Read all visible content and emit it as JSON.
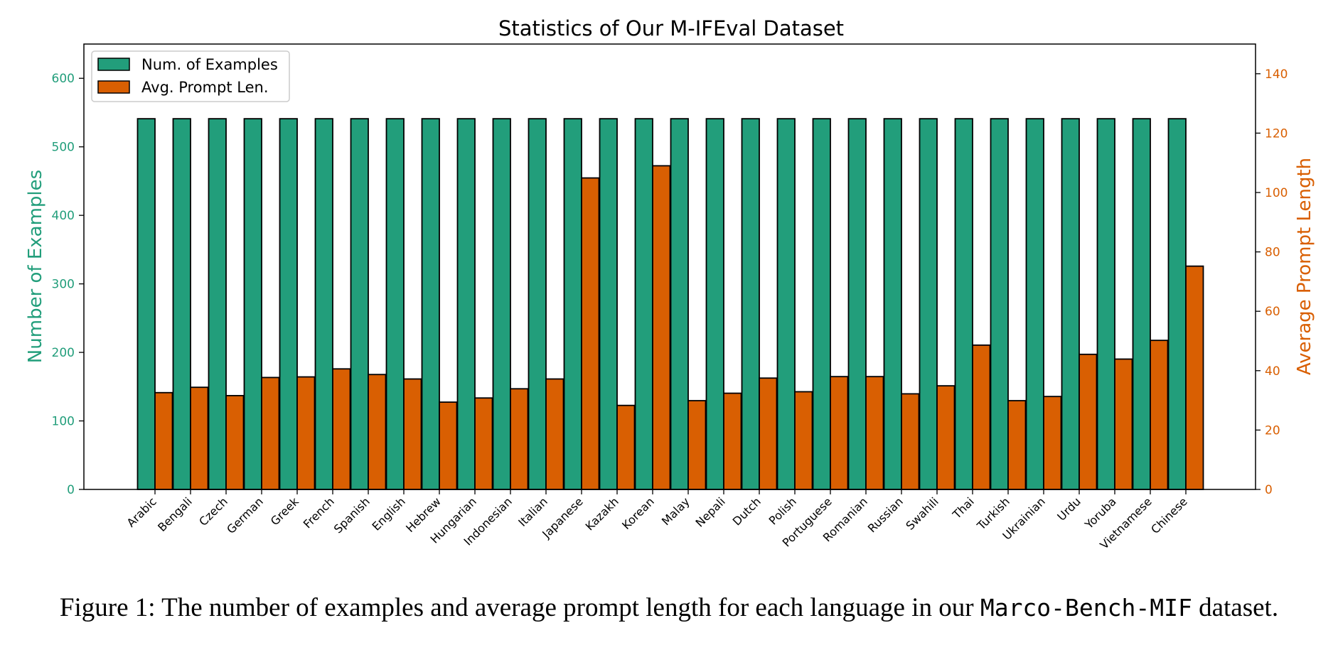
{
  "chart_data": {
    "type": "bar",
    "title": "Statistics of Our M-IFEval Dataset",
    "ylabel": "Number of Examples",
    "y2label": "Average Prompt Length",
    "ylim": [
      0,
      650
    ],
    "y2lim": [
      0,
      150
    ],
    "yticks": [
      0,
      100,
      200,
      300,
      400,
      500,
      600
    ],
    "y2ticks": [
      0,
      20,
      40,
      60,
      80,
      100,
      120,
      140
    ],
    "grid": false,
    "legend_position": "top-left",
    "categories": [
      "Arabic",
      "Bengali",
      "Czech",
      "German",
      "Greek",
      "French",
      "Spanish",
      "English",
      "Hebrew",
      "Hungarian",
      "Indonesian",
      "Italian",
      "Japanese",
      "Kazakh",
      "Korean",
      "Malay",
      "Nepali",
      "Dutch",
      "Polish",
      "Portuguese",
      "Romanian",
      "Russian",
      "Swahili",
      "Thai",
      "Turkish",
      "Ukrainian",
      "Urdu",
      "Yoruba",
      "Vietnamese",
      "Chinese"
    ],
    "series": [
      {
        "name": "Num. of Examples",
        "axis": "left",
        "color": "#229e7b",
        "values": [
          541,
          541,
          541,
          541,
          541,
          541,
          541,
          541,
          541,
          541,
          541,
          541,
          541,
          541,
          541,
          541,
          541,
          541,
          541,
          541,
          541,
          541,
          541,
          541,
          541,
          541,
          541,
          541,
          541,
          541
        ]
      },
      {
        "name": "Avg. Prompt Len.",
        "axis": "right",
        "color": "#d95f02",
        "values": [
          32.6,
          34.4,
          31.6,
          37.7,
          37.9,
          40.6,
          38.7,
          37.2,
          29.4,
          30.8,
          33.9,
          37.2,
          104.9,
          28.3,
          109.0,
          29.9,
          32.4,
          37.5,
          32.9,
          38.0,
          38.0,
          32.2,
          34.9,
          48.6,
          29.9,
          31.3,
          45.5,
          43.9,
          50.2,
          75.2
        ]
      }
    ]
  },
  "figure_caption": {
    "prefix": "Figure 1: The number of examples and average prompt length for each language in our",
    "code": "Marco-Bench-MIF",
    "suffix": "dataset."
  },
  "colors": {
    "left_axis": "#229e7b",
    "right_axis": "#d95f02",
    "bar_edge": "#000000"
  }
}
